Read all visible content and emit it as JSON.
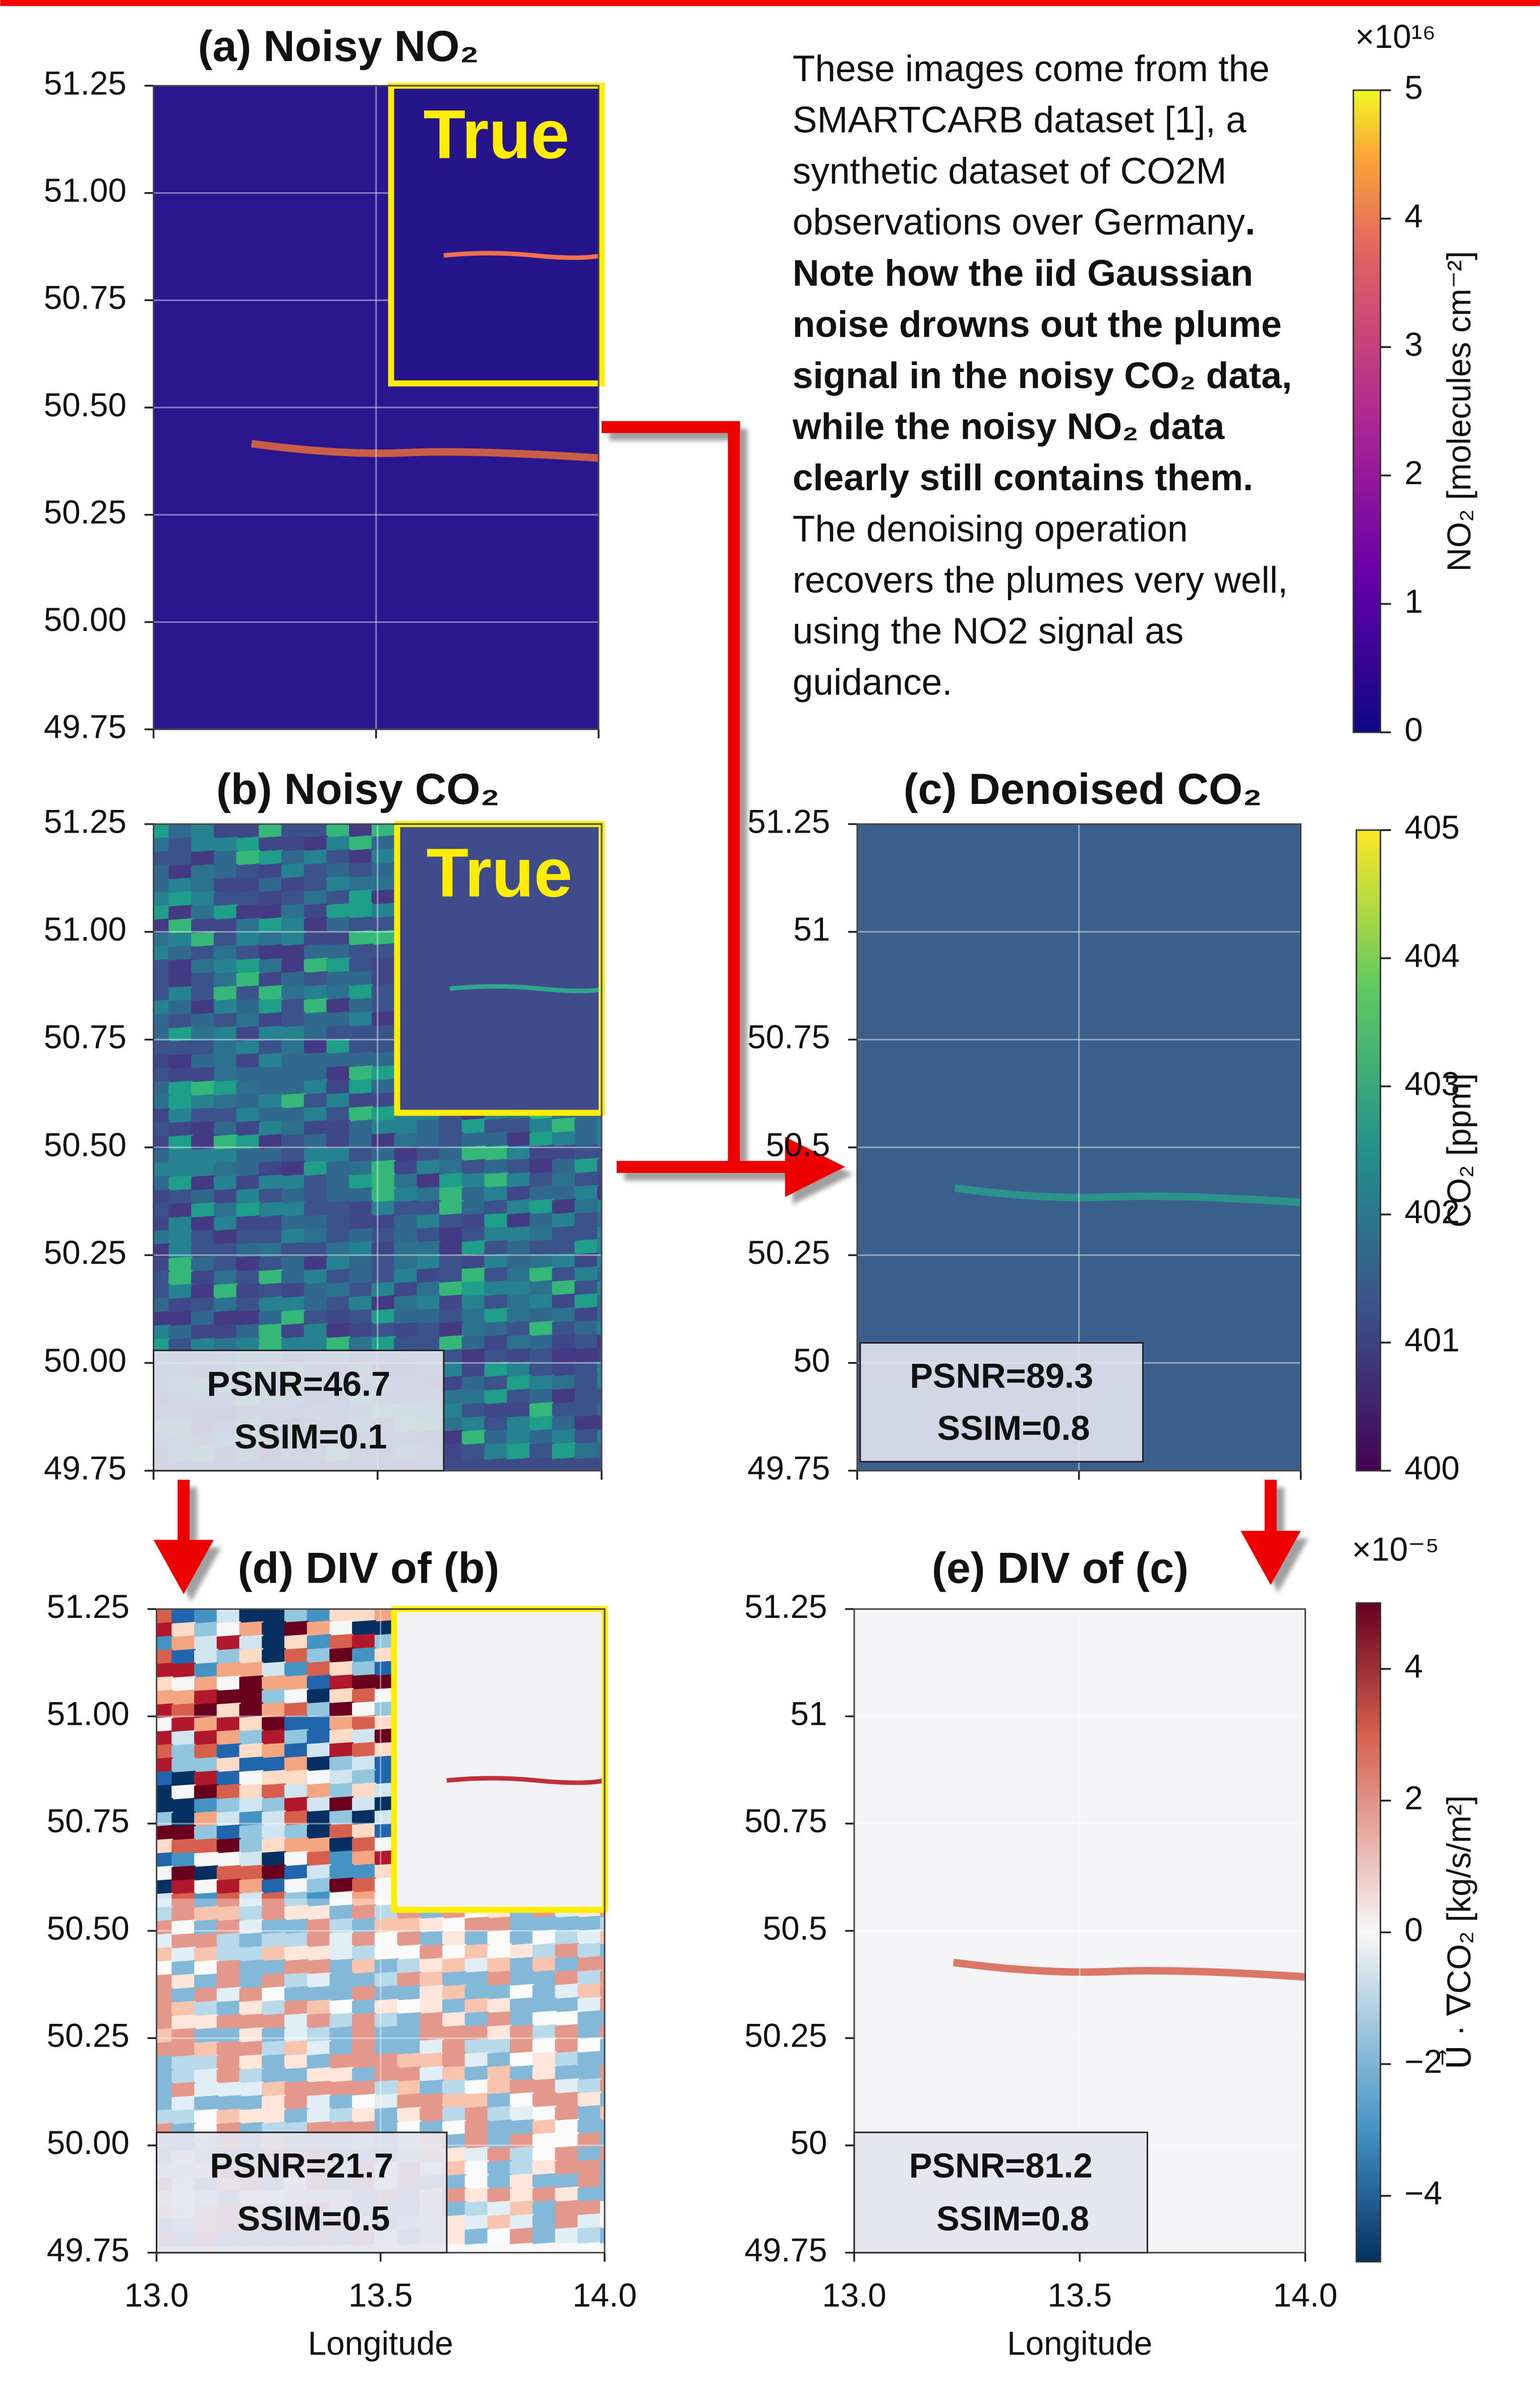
{
  "chart_data": [
    {
      "type": "heatmap",
      "title": "(a) Noisy NO₂",
      "inset_label": "True",
      "colormap": "plasma",
      "ylim": [
        49.75,
        51.25
      ],
      "yticks": [
        {
          "value": 49.75,
          "label": "49.75"
        },
        {
          "value": 50,
          "label": "50.00"
        },
        {
          "value": 50.25,
          "label": "50.25"
        },
        {
          "value": 50.5,
          "label": "50.50"
        },
        {
          "value": 50.75,
          "label": "50.75"
        },
        {
          "value": 51,
          "label": "51.00"
        },
        {
          "value": 51.25,
          "label": "51.25"
        }
      ],
      "xlim": [
        13,
        14
      ],
      "xticks": [
        13,
        13.5,
        14
      ],
      "colorbar": {
        "label": "NO₂ [molecules cm⁻²]",
        "multiplier": "×10¹⁶",
        "clim": [
          0,
          5
        ],
        "ticks": [
          0,
          1,
          2,
          3,
          4,
          5
        ]
      }
    },
    {
      "type": "heatmap",
      "title": "(b) Noisy CO₂",
      "inset_label": "True",
      "colormap": "viridis",
      "ylim": [
        49.75,
        51.25
      ],
      "yticks": [
        {
          "value": 49.75,
          "label": "49.75"
        },
        {
          "value": 50,
          "label": "50.00"
        },
        {
          "value": 50.25,
          "label": "50.25"
        },
        {
          "value": 50.5,
          "label": "50.50"
        },
        {
          "value": 50.75,
          "label": "50.75"
        },
        {
          "value": 51,
          "label": "51.00"
        },
        {
          "value": 51.25,
          "label": "51.25"
        }
      ],
      "xlim": [
        13,
        14
      ],
      "xticks": [
        13,
        13.5,
        14
      ],
      "annotations": [
        "PSNR=46.7",
        "SSIM=0.1"
      ]
    },
    {
      "type": "heatmap",
      "title": "(c) Denoised CO₂",
      "colormap": "viridis",
      "ylim": [
        49.75,
        51.25
      ],
      "yticks": [
        49.75,
        50,
        50.25,
        50.5,
        50.75,
        51,
        51.25
      ],
      "xlim": [
        13,
        14
      ],
      "xticks": [
        13,
        13.5,
        14
      ],
      "annotations": [
        "PSNR=89.3",
        "SSIM=0.8"
      ],
      "colorbar": {
        "label": "CO₂ [ppm]",
        "clim": [
          400,
          405
        ],
        "ticks": [
          400,
          401,
          402,
          403,
          404,
          405
        ]
      }
    },
    {
      "type": "heatmap",
      "title": "(d) DIV of (b)",
      "colormap": "RdBu",
      "ylim": [
        49.75,
        51.25
      ],
      "yticks": [
        {
          "value": 49.75,
          "label": "49.75"
        },
        {
          "value": 50,
          "label": "50.00"
        },
        {
          "value": 50.25,
          "label": "50.25"
        },
        {
          "value": 50.5,
          "label": "50.50"
        },
        {
          "value": 50.75,
          "label": "50.75"
        },
        {
          "value": 51,
          "label": "51.00"
        },
        {
          "value": 51.25,
          "label": "51.25"
        }
      ],
      "xlim": [
        13,
        14
      ],
      "xticks": [
        {
          "value": 13,
          "label": "13.0"
        },
        13.5,
        {
          "value": 14,
          "label": "14.0"
        }
      ],
      "xlabel": "Longitude",
      "annotations": [
        "PSNR=21.7",
        "SSIM=0.5"
      ]
    },
    {
      "type": "heatmap",
      "title": "(e) DIV of (c)",
      "colormap": "RdBu",
      "ylim": [
        49.75,
        51.25
      ],
      "yticks": [
        49.75,
        50,
        50.25,
        50.5,
        50.75,
        51,
        51.25
      ],
      "xlim": [
        13,
        14
      ],
      "xticks": [
        {
          "value": 13,
          "label": "13.0"
        },
        13.5,
        {
          "value": 14,
          "label": "14.0"
        }
      ],
      "xlabel": "Longitude",
      "annotations": [
        "PSNR=81.2",
        "SSIM=0.8"
      ],
      "colorbar": {
        "label": "U⃗ · ∇CO₂ [kg/s/m²]",
        "multiplier": "×10⁻⁵",
        "clim": [
          -5,
          5
        ],
        "ticks": [
          {
            "value": -4,
            "label": "−4"
          },
          {
            "value": -2,
            "label": "−2"
          },
          0,
          2,
          4
        ]
      }
    }
  ],
  "description": {
    "intro": "These images come from the SMARTCARB dataset [1], a synthetic dataset of CO2M observations over Germany",
    "emphasis": ". Note how the iid Gaussian noise drowns out the plume signal in the noisy CO₂ data, while the noisy NO₂ data clearly still contains them.",
    "outro": " The denoising operation recovers the plumes very well, using the NO2 signal as guidance."
  }
}
